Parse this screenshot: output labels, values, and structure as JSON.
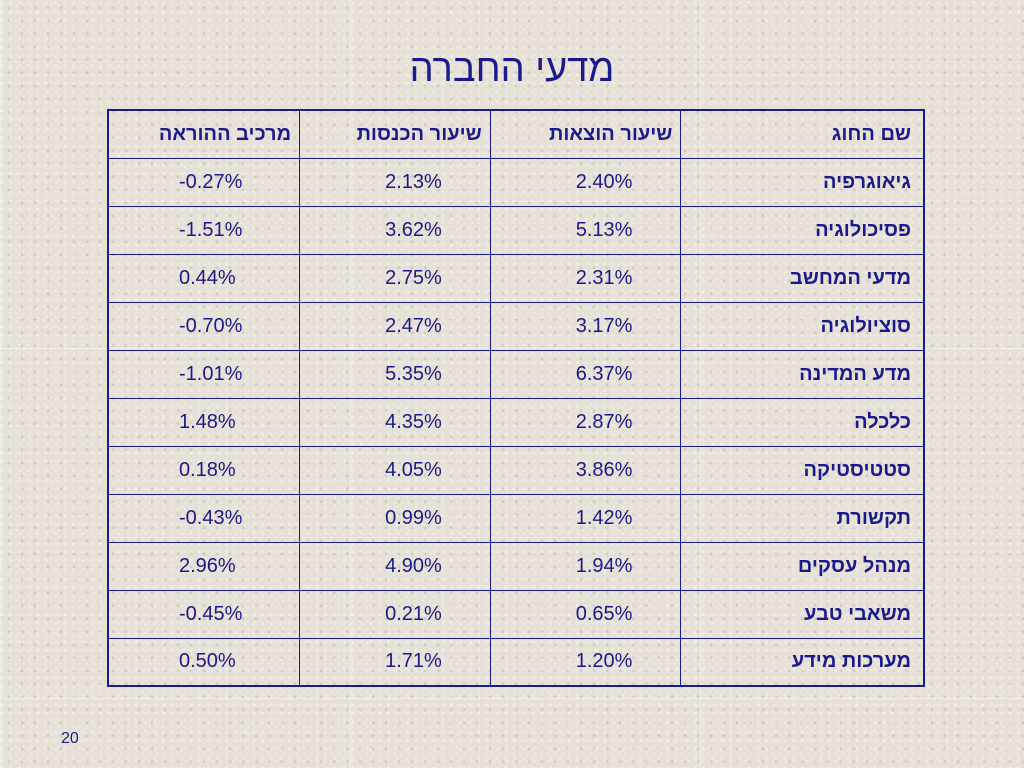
{
  "slide": {
    "title": "מדעי החברה",
    "page_number": "20"
  },
  "table": {
    "headers": [
      "שם החוג",
      "שיעור הוצאות",
      "שיעור הכנסות",
      "מרכיב ההוראה"
    ],
    "rows": [
      [
        "גיאוגרפיה",
        "2.40%",
        "2.13%",
        "-0.27%"
      ],
      [
        "פסיכולוגיה",
        "5.13%",
        "3.62%",
        "-1.51%"
      ],
      [
        "מדעי המחשב",
        "2.31%",
        "2.75%",
        "0.44%"
      ],
      [
        "סוציולוגיה",
        "3.17%",
        "2.47%",
        "-0.70%"
      ],
      [
        "מדע המדינה",
        "6.37%",
        "5.35%",
        "-1.01%"
      ],
      [
        "כלכלה",
        "2.87%",
        "4.35%",
        "1.48%"
      ],
      [
        "סטטיסטיקה",
        "3.86%",
        "4.05%",
        "0.18%"
      ],
      [
        "תקשורת",
        "1.42%",
        "0.99%",
        "-0.43%"
      ],
      [
        "מנהל עסקים",
        "1.94%",
        "4.90%",
        "2.96%"
      ],
      [
        "משאבי טבע",
        "0.65%",
        "0.21%",
        "-0.45%"
      ],
      [
        "מערכות מידע",
        "1.20%",
        "1.71%",
        "0.50%"
      ]
    ]
  }
}
